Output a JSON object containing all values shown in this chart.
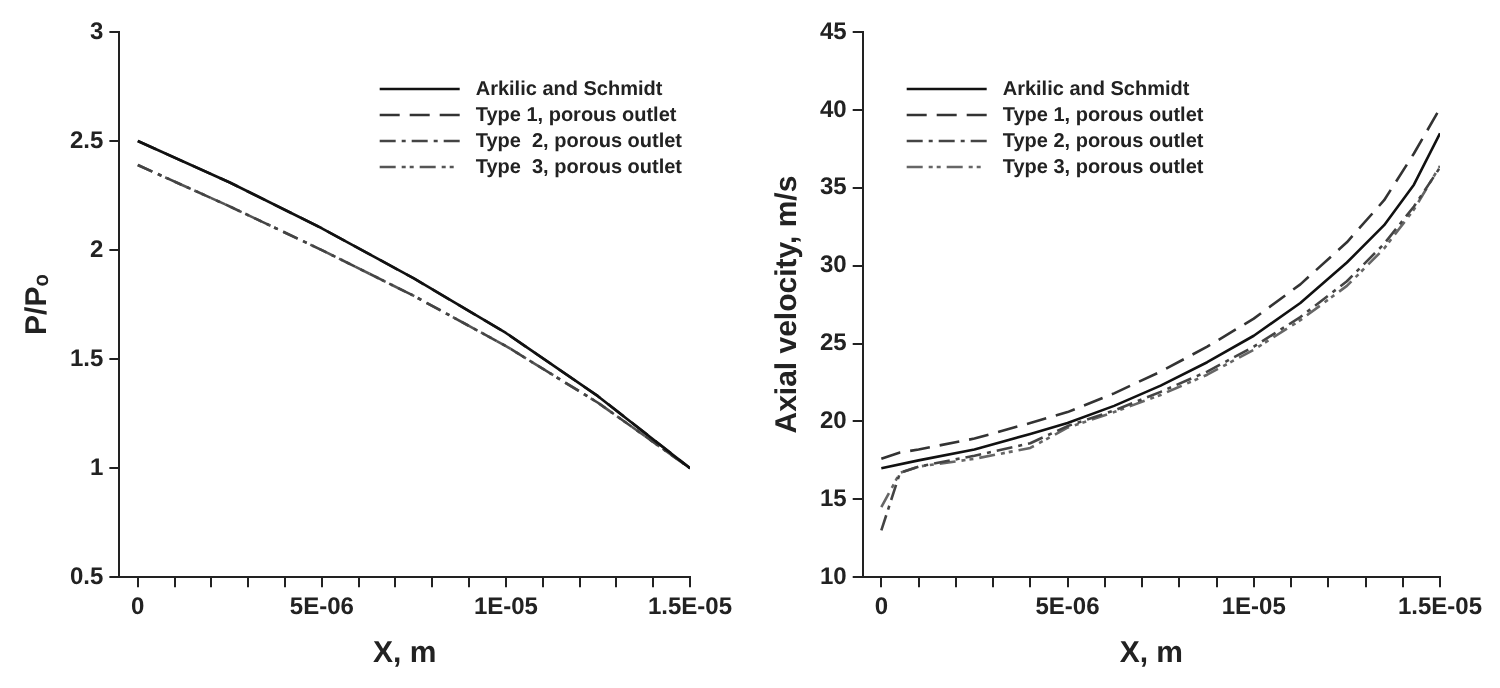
{
  "chart_data": [
    {
      "type": "line",
      "xlabel": "X, m",
      "ylabel": "P/Pₒ",
      "legend": "top right",
      "xlim": [
        -5e-07,
        1.5e-05
      ],
      "xticks": [
        {
          "value": 0,
          "label": "0"
        },
        {
          "value": 1e-06,
          "label": null
        },
        {
          "value": 2e-06,
          "label": null
        },
        {
          "value": 3e-06,
          "label": null
        },
        {
          "value": 4e-06,
          "label": null
        },
        {
          "value": 5e-06,
          "label": "5E-06"
        },
        {
          "value": 6e-06,
          "label": null
        },
        {
          "value": 7e-06,
          "label": null
        },
        {
          "value": 8e-06,
          "label": null
        },
        {
          "value": 9e-06,
          "label": null
        },
        {
          "value": 1e-05,
          "label": "1E-05"
        },
        {
          "value": 1.1e-05,
          "label": null
        },
        {
          "value": 1.2e-05,
          "label": null
        },
        {
          "value": 1.3e-05,
          "label": null
        },
        {
          "value": 1.4e-05,
          "label": null
        },
        {
          "value": 1.5e-05,
          "label": "1.5E-05"
        }
      ],
      "ylim": [
        0.5,
        3
      ],
      "yticks": [
        0.5,
        1,
        1.5,
        2,
        2.5,
        3
      ],
      "series": [
        {
          "name": "Arkilic and Schmidt",
          "color": "#111111",
          "line_style": "solid",
          "x": [
            0,
            2.5e-06,
            5e-06,
            7.5e-06,
            1e-05,
            1.25e-05,
            1.5e-05
          ],
          "values": [
            2.5,
            2.31,
            2.1,
            1.87,
            1.62,
            1.33,
            1.0
          ]
        },
        {
          "name": "Type 1, porous outlet",
          "color": "#333333",
          "line_style": "dashed",
          "x": [
            0,
            2.5e-06,
            5e-06,
            7.5e-06,
            1e-05,
            1.25e-05,
            1.5e-05
          ],
          "values": [
            2.5,
            2.31,
            2.1,
            1.87,
            1.62,
            1.33,
            1.0
          ]
        },
        {
          "name": "Type  2, porous outlet",
          "color": "#444444",
          "line_style": "dashdot",
          "x": [
            0,
            2.5e-06,
            5e-06,
            7.5e-06,
            1e-05,
            1.25e-05,
            1.5e-05
          ],
          "values": [
            2.39,
            2.2,
            2.0,
            1.79,
            1.56,
            1.3,
            1.0
          ]
        },
        {
          "name": "Type  3, porous outlet",
          "color": "#555555",
          "line_style": "dashdotdot",
          "x": [
            0,
            2.5e-06,
            5e-06,
            7.5e-06,
            1e-05,
            1.25e-05,
            1.5e-05
          ],
          "values": [
            2.39,
            2.2,
            2.0,
            1.79,
            1.56,
            1.3,
            1.0
          ]
        }
      ]
    },
    {
      "type": "line",
      "xlabel": "X, m",
      "ylabel": "Axial velocity, m/s",
      "legend": "top left",
      "xlim": [
        -5e-07,
        1.5e-05
      ],
      "xticks": [
        {
          "value": 0,
          "label": "0"
        },
        {
          "value": 1e-06,
          "label": null
        },
        {
          "value": 2e-06,
          "label": null
        },
        {
          "value": 3e-06,
          "label": null
        },
        {
          "value": 4e-06,
          "label": null
        },
        {
          "value": 5e-06,
          "label": "5E-06"
        },
        {
          "value": 6e-06,
          "label": null
        },
        {
          "value": 7e-06,
          "label": null
        },
        {
          "value": 8e-06,
          "label": null
        },
        {
          "value": 9e-06,
          "label": null
        },
        {
          "value": 1e-05,
          "label": "1E-05"
        },
        {
          "value": 1.1e-05,
          "label": null
        },
        {
          "value": 1.2e-05,
          "label": null
        },
        {
          "value": 1.3e-05,
          "label": null
        },
        {
          "value": 1.4e-05,
          "label": null
        },
        {
          "value": 1.5e-05,
          "label": "1.5E-05"
        }
      ],
      "ylim": [
        10,
        45
      ],
      "yticks": [
        10,
        15,
        20,
        25,
        30,
        35,
        40,
        45
      ],
      "series": [
        {
          "name": "Arkilic and Schmidt",
          "color": "#111111",
          "line_style": "solid",
          "x": [
            0,
            1e-06,
            2.5e-06,
            4e-06,
            5e-06,
            6.25e-06,
            7.5e-06,
            8.75e-06,
            1e-05,
            1.125e-05,
            1.25e-05,
            1.35e-05,
            1.43e-05,
            1.5e-05
          ],
          "values": [
            17.0,
            17.5,
            18.2,
            19.2,
            19.9,
            21.0,
            22.3,
            23.8,
            25.5,
            27.6,
            30.2,
            32.6,
            35.2,
            38.5
          ]
        },
        {
          "name": "Type 1, porous outlet",
          "color": "#333333",
          "line_style": "dashed",
          "x": [
            0,
            5e-07,
            1e-06,
            2.5e-06,
            4e-06,
            5e-06,
            6.25e-06,
            7.5e-06,
            8.75e-06,
            1e-05,
            1.125e-05,
            1.25e-05,
            1.35e-05,
            1.43e-05,
            1.5e-05
          ],
          "values": [
            17.6,
            18.0,
            18.2,
            18.9,
            19.9,
            20.6,
            21.8,
            23.2,
            24.8,
            26.6,
            28.8,
            31.5,
            34.2,
            37.2,
            40.1
          ]
        },
        {
          "name": "Type 2, porous outlet",
          "color": "#444444",
          "line_style": "dashdot",
          "x": [
            0,
            5e-07,
            1e-06,
            2.5e-06,
            4e-06,
            5e-06,
            6.25e-06,
            7.5e-06,
            8.75e-06,
            1e-05,
            1.125e-05,
            1.25e-05,
            1.35e-05,
            1.43e-05,
            1.5e-05
          ],
          "values": [
            13.0,
            16.7,
            17.1,
            17.8,
            18.6,
            19.7,
            20.7,
            21.9,
            23.2,
            24.8,
            26.7,
            29.0,
            31.4,
            33.8,
            36.3
          ]
        },
        {
          "name": "Type 3, porous outlet",
          "color": "#666666",
          "line_style": "dashdotdot",
          "x": [
            0,
            5e-07,
            1e-06,
            2.5e-06,
            4e-06,
            5e-06,
            6.25e-06,
            7.5e-06,
            8.75e-06,
            1e-05,
            1.125e-05,
            1.25e-05,
            1.35e-05,
            1.43e-05,
            1.5e-05
          ],
          "values": [
            14.5,
            16.7,
            17.1,
            17.6,
            18.3,
            19.6,
            20.6,
            21.7,
            23.0,
            24.6,
            26.5,
            28.7,
            31.1,
            33.6,
            36.4
          ]
        }
      ]
    }
  ]
}
